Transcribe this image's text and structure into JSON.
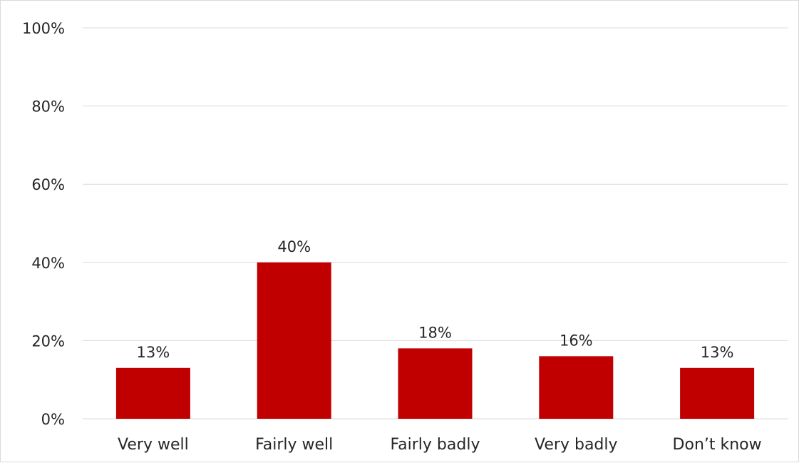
{
  "chart_data": {
    "type": "bar",
    "categories": [
      "Very well",
      "Fairly well",
      "Fairly badly",
      "Very badly",
      "Don’t know"
    ],
    "values": [
      13,
      40,
      18,
      16,
      13
    ],
    "data_labels": [
      "13%",
      "40%",
      "18%",
      "16%",
      "13%"
    ],
    "y_ticks": [
      "0%",
      "20%",
      "40%",
      "60%",
      "80%",
      "100%"
    ],
    "y_tick_values": [
      0,
      20,
      40,
      60,
      80,
      100
    ],
    "ylim": [
      0,
      100
    ],
    "title": "",
    "xlabel": "",
    "ylabel": "",
    "grid": true,
    "legend": "none",
    "bar_color": "#c00000"
  }
}
